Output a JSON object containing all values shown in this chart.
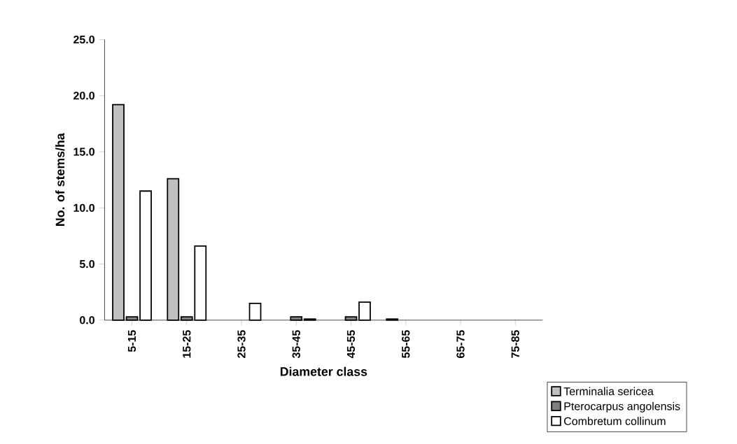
{
  "chart_data": {
    "type": "bar",
    "xlabel": "Diameter class",
    "ylabel": "No. of stems/ha",
    "categories": [
      "5-15",
      "15-25",
      "25-35",
      "35-45",
      "45-55",
      "55-65",
      "65-75",
      "75-85"
    ],
    "series": [
      {
        "name": "Terminalia sericea",
        "color": "#c0c0c0",
        "values": [
          19.2,
          12.6,
          null,
          null,
          null,
          0.1,
          null,
          null
        ]
      },
      {
        "name": "Pterocarpus angolensis",
        "color": "#808080",
        "values": [
          0.3,
          0.3,
          null,
          0.3,
          0.3,
          null,
          null,
          null
        ]
      },
      {
        "name": "Combretum collinum",
        "color": "#ffffff",
        "values": [
          11.5,
          6.6,
          1.5,
          0.1,
          1.6,
          null,
          null,
          null
        ]
      }
    ],
    "ylim": [
      0,
      25
    ],
    "yticks": [
      {
        "value": 0,
        "label": "0.0"
      },
      {
        "value": 5,
        "label": "5.0"
      },
      {
        "value": 10,
        "label": "10.0"
      },
      {
        "value": 15,
        "label": "15.0"
      },
      {
        "value": 20,
        "label": "20.0"
      },
      {
        "value": 25,
        "label": "25.0"
      }
    ],
    "legend": "bottom right"
  }
}
